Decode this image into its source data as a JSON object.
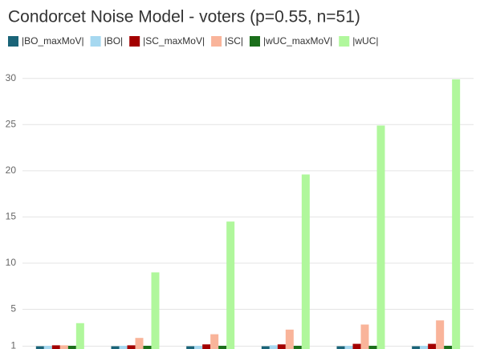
{
  "chart_data": {
    "type": "bar",
    "title": "Condorcet Noise Model - voters (p=0.55, n=51)",
    "categories": [
      null,
      null,
      null,
      null,
      null,
      null
    ],
    "series": [
      {
        "name": "|BO_maxMoV|",
        "color": "#1a6478",
        "values": [
          1,
          1,
          1,
          1,
          1,
          1
        ]
      },
      {
        "name": "|BO|",
        "color": "#a6d8f0",
        "values": [
          1.05,
          1.05,
          1.05,
          1.1,
          1.05,
          1.05
        ]
      },
      {
        "name": "|SC_maxMoV|",
        "color": "#a30000",
        "values": [
          1.1,
          1.1,
          1.2,
          1.2,
          1.26,
          1.26
        ]
      },
      {
        "name": "|SC|",
        "color": "#f9b49a",
        "values": [
          1.1,
          1.9,
          2.3,
          2.8,
          3.35,
          3.8
        ]
      },
      {
        "name": "|wUC_maxMoV|",
        "color": "#1a6e1a",
        "values": [
          1.05,
          1.05,
          1.05,
          1.05,
          1.05,
          1.05
        ]
      },
      {
        "name": "|wUC|",
        "color": "#b0f79c",
        "values": [
          3.5,
          9.0,
          14.5,
          19.6,
          24.9,
          29.9
        ]
      }
    ],
    "ylim": [
      0.7,
      30.5
    ],
    "yticks": [
      1,
      5,
      10,
      15,
      20,
      25,
      30
    ],
    "grid": true
  }
}
